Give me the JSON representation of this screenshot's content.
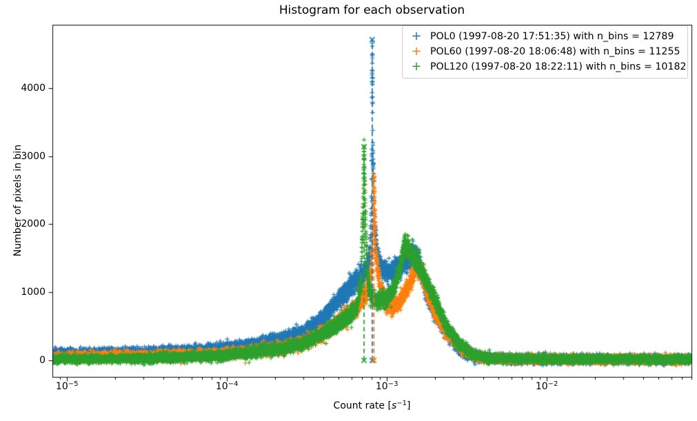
{
  "title": "Histogram for each observation",
  "axes": {
    "ylabel": "Number of pixels in bin",
    "xlabel": {
      "prefix": "Count rate [",
      "unit": "s",
      "exponent": "−1",
      "suffix": "]"
    },
    "x_ticks": [
      {
        "base": "10",
        "exp": "−5",
        "value": 1e-05
      },
      {
        "base": "10",
        "exp": "−4",
        "value": 0.0001
      },
      {
        "base": "10",
        "exp": "−3",
        "value": 0.001
      },
      {
        "base": "10",
        "exp": "−2",
        "value": 0.01
      }
    ],
    "y_ticks": [
      {
        "label": "0",
        "value": 0
      },
      {
        "label": "1000",
        "value": 1000
      },
      {
        "label": "2000",
        "value": 2000
      },
      {
        "label": "3000",
        "value": 3000
      },
      {
        "label": "4000",
        "value": 4000
      }
    ]
  },
  "legend": {
    "entries": [
      {
        "label": "POL0 (1997-08-20 17:51:35) with n_bins = 12789",
        "marker": "+",
        "color": "#1f77b4"
      },
      {
        "label": "POL60 (1997-08-20 18:06:48) with n_bins = 11255",
        "marker": "+",
        "color": "#ff7f0e"
      },
      {
        "label": "POL120 (1997-08-20 18:22:11) with n_bins = 10182",
        "marker": "+",
        "color": "#2ca02c"
      }
    ]
  },
  "chart_data": {
    "type": "scatter",
    "title": "Histogram for each observation",
    "xlabel": "Count rate [s^-1]",
    "ylabel": "Number of pixels in bin",
    "xscale": "log",
    "xlim": [
      8.1e-06,
      0.0803
    ],
    "ylim": [
      -243,
      4929
    ],
    "grid": false,
    "legend_position": "upper right",
    "marker": "+",
    "series": [
      {
        "name": "POL0",
        "datetime": "1997-08-20 17:51:35",
        "n_bins": 12789,
        "color": "#1f77b4",
        "peak": {
          "x": 0.00081,
          "y": 4712
        },
        "profile": [
          [
            8.1e-06,
            90
          ],
          [
            1.5e-05,
            95
          ],
          [
            3e-05,
            110
          ],
          [
            6e-05,
            135
          ],
          [
            0.0001,
            175
          ],
          [
            0.00015,
            230
          ],
          [
            0.00022,
            310
          ],
          [
            0.0003,
            410
          ],
          [
            0.0004,
            620
          ],
          [
            0.0005,
            900
          ],
          [
            0.0006,
            1110
          ],
          [
            0.00065,
            1180
          ],
          [
            0.0007,
            1260
          ],
          [
            0.00075,
            1350
          ],
          [
            0.00078,
            1500
          ],
          [
            0.000795,
            1900
          ],
          [
            0.000805,
            3000
          ],
          [
            0.00081,
            4712
          ],
          [
            0.000818,
            3100
          ],
          [
            0.000835,
            2100
          ],
          [
            0.00086,
            1600
          ],
          [
            0.0009,
            1390
          ],
          [
            0.001,
            1300
          ],
          [
            0.00112,
            1330
          ],
          [
            0.00125,
            1420
          ],
          [
            0.00135,
            1480
          ],
          [
            0.0015,
            1560
          ],
          [
            0.0016,
            1420
          ],
          [
            0.00175,
            1060
          ],
          [
            0.0019,
            820
          ],
          [
            0.0021,
            620
          ],
          [
            0.0024,
            410
          ],
          [
            0.0027,
            240
          ],
          [
            0.003,
            140
          ],
          [
            0.0034,
            70
          ],
          [
            0.0038,
            40
          ],
          [
            0.0045,
            25
          ],
          [
            0.006,
            18
          ],
          [
            0.01,
            15
          ],
          [
            0.03,
            15
          ],
          [
            0.0803,
            15
          ]
        ]
      },
      {
        "name": "POL60",
        "datetime": "1997-08-20 18:06:48",
        "n_bins": 11255,
        "color": "#ff7f0e",
        "peak": {
          "x": 0.00083,
          "y": 2662
        },
        "profile": [
          [
            8.1e-06,
            45
          ],
          [
            1.5e-05,
            50
          ],
          [
            3e-05,
            60
          ],
          [
            6e-05,
            75
          ],
          [
            0.0001,
            100
          ],
          [
            0.00015,
            135
          ],
          [
            0.00022,
            185
          ],
          [
            0.0003,
            260
          ],
          [
            0.0004,
            400
          ],
          [
            0.0005,
            570
          ],
          [
            0.0006,
            710
          ],
          [
            0.0007,
            870
          ],
          [
            0.00076,
            1020
          ],
          [
            0.0008,
            1350
          ],
          [
            0.00082,
            2000
          ],
          [
            0.00083,
            2662
          ],
          [
            0.000842,
            2100
          ],
          [
            0.00086,
            1500
          ],
          [
            0.0009,
            1130
          ],
          [
            0.001,
            790
          ],
          [
            0.0011,
            780
          ],
          [
            0.00125,
            910
          ],
          [
            0.0014,
            1160
          ],
          [
            0.00155,
            1380
          ],
          [
            0.00168,
            1230
          ],
          [
            0.0018,
            980
          ],
          [
            0.002,
            720
          ],
          [
            0.0023,
            470
          ],
          [
            0.0026,
            300
          ],
          [
            0.003,
            160
          ],
          [
            0.0034,
            80
          ],
          [
            0.0038,
            45
          ],
          [
            0.0045,
            28
          ],
          [
            0.006,
            20
          ],
          [
            0.01,
            16
          ],
          [
            0.03,
            16
          ],
          [
            0.0803,
            16
          ]
        ]
      },
      {
        "name": "POL120",
        "datetime": "1997-08-20 18:22:11",
        "n_bins": 10182,
        "color": "#2ca02c",
        "peak": {
          "x": 0.00072,
          "y": 3138
        },
        "profile": [
          [
            8.1e-06,
            15
          ],
          [
            1.5e-05,
            20
          ],
          [
            3e-05,
            30
          ],
          [
            6e-05,
            50
          ],
          [
            0.0001,
            80
          ],
          [
            0.00015,
            120
          ],
          [
            0.00022,
            170
          ],
          [
            0.0003,
            250
          ],
          [
            0.0004,
            390
          ],
          [
            0.0005,
            540
          ],
          [
            0.0006,
            680
          ],
          [
            0.00065,
            800
          ],
          [
            0.00069,
            1150
          ],
          [
            0.00071,
            2200
          ],
          [
            0.00072,
            3138
          ],
          [
            0.000732,
            2200
          ],
          [
            0.00075,
            1350
          ],
          [
            0.00078,
            1000
          ],
          [
            0.00085,
            890
          ],
          [
            0.00095,
            880
          ],
          [
            0.00105,
            950
          ],
          [
            0.0012,
            1300
          ],
          [
            0.0013,
            1750
          ],
          [
            0.0014,
            1600
          ],
          [
            0.0015,
            1480
          ],
          [
            0.0016,
            1380
          ],
          [
            0.00175,
            1200
          ],
          [
            0.0019,
            1000
          ],
          [
            0.0021,
            780
          ],
          [
            0.0023,
            560
          ],
          [
            0.0026,
            340
          ],
          [
            0.003,
            190
          ],
          [
            0.0034,
            100
          ],
          [
            0.0038,
            55
          ],
          [
            0.0045,
            32
          ],
          [
            0.006,
            22
          ],
          [
            0.01,
            18
          ],
          [
            0.03,
            18
          ],
          [
            0.0803,
            18
          ]
        ]
      }
    ],
    "vlines": [
      {
        "series": "POL0",
        "x": 0.00081,
        "y_top": 4712,
        "color": "#1f77b4",
        "linestyle": "dashed",
        "endpoint_marker": "x"
      },
      {
        "series": "POL60",
        "x": 0.00083,
        "y_top": 2662,
        "color": "#ff7f0e",
        "linestyle": "dashed",
        "endpoint_marker": "x"
      },
      {
        "series": "POL120",
        "x": 0.00072,
        "y_top": 3138,
        "color": "#2ca02c",
        "linestyle": "dashed",
        "endpoint_marker": "x"
      }
    ]
  }
}
